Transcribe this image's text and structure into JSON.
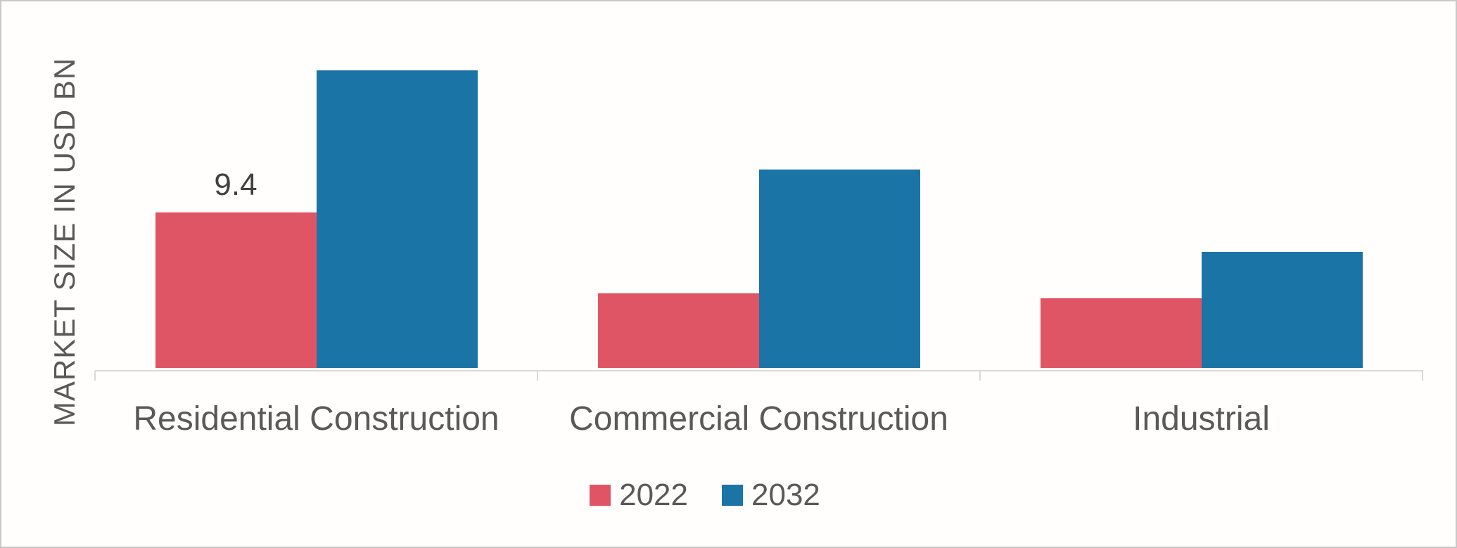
{
  "chart_data": {
    "type": "bar",
    "title": "",
    "ylabel": "MARKET SIZE IN USD BN",
    "xlabel": "",
    "categories": [
      "Residential Construction",
      "Commercial Construction",
      "Industrial"
    ],
    "series": [
      {
        "name": "2022",
        "color": "#e05565",
        "values": [
          9.4,
          4.5,
          4.2
        ]
      },
      {
        "name": "2032",
        "color": "#1b74a6",
        "values": [
          18.0,
          12.0,
          7.0
        ]
      }
    ],
    "ylim": [
      0,
      19
    ],
    "grid": false,
    "y_axis_ticks_visible": false,
    "legend_position": "bottom-center",
    "data_labels": [
      {
        "series": "2022",
        "category": "Residential Construction",
        "text": "9.4"
      }
    ]
  },
  "colors": {
    "series_2022": "#e05565",
    "series_2032": "#1b74a6",
    "axis_line": "#d9d9d9",
    "label_text": "#595959",
    "data_label_text": "#404040",
    "canvas_border": "#c9c9c9",
    "background": "#fffefd"
  }
}
